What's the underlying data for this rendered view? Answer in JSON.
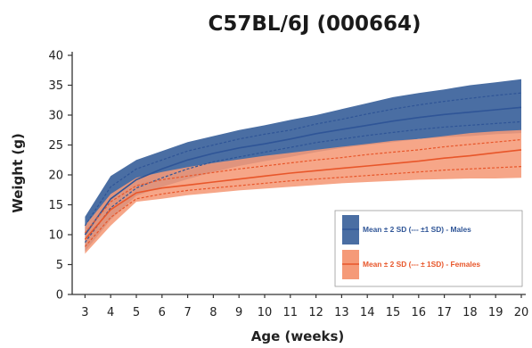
{
  "chart_data": {
    "type": "area",
    "title": "C57BL/6J (000664)",
    "xlabel": "Age (weeks)",
    "ylabel": "Weight (g)",
    "x": [
      3,
      4,
      5,
      6,
      7,
      8,
      9,
      10,
      11,
      12,
      13,
      14,
      15,
      16,
      17,
      18,
      19,
      20
    ],
    "xlim": [
      2.5,
      20
    ],
    "ylim": [
      0,
      40
    ],
    "yticks": [
      0,
      5,
      10,
      15,
      20,
      25,
      30,
      35,
      40
    ],
    "grid": "none",
    "legend_position": "bottom-right",
    "series": [
      {
        "name": "Mean ± 2 SD (--- ±1 SD) - Males",
        "color": "#2f5597",
        "band_color": "#4a6ea3",
        "mean": [
          10.0,
          16.0,
          19.2,
          21.0,
          22.5,
          23.6,
          24.5,
          25.2,
          26.0,
          26.9,
          27.6,
          28.3,
          29.0,
          29.6,
          30.1,
          30.5,
          30.9,
          31.3
        ],
        "upper2": [
          13.0,
          19.8,
          22.5,
          24.0,
          25.5,
          26.5,
          27.5,
          28.3,
          29.2,
          30.0,
          31.0,
          32.0,
          33.0,
          33.7,
          34.3,
          35.0,
          35.5,
          36.0
        ],
        "lower2": [
          7.2,
          12.5,
          16.5,
          18.0,
          19.3,
          20.5,
          21.5,
          22.3,
          23.0,
          23.8,
          24.5,
          25.0,
          25.5,
          26.0,
          26.3,
          26.5,
          26.8,
          27.0
        ],
        "upper1": [
          11.5,
          18.0,
          21.0,
          22.5,
          24.0,
          25.0,
          26.0,
          26.8,
          27.5,
          28.5,
          29.3,
          30.2,
          31.0,
          31.7,
          32.3,
          32.8,
          33.3,
          33.7
        ],
        "lower1": [
          8.7,
          14.5,
          17.8,
          19.5,
          21.0,
          22.2,
          23.0,
          23.8,
          24.6,
          25.4,
          26.0,
          26.6,
          27.1,
          27.6,
          28.0,
          28.3,
          28.6,
          28.9
        ]
      },
      {
        "name": "Mean ± 2 SD (--- ± 1SD) - Females",
        "color": "#e8562a",
        "band_color": "#f59a78",
        "mean": [
          9.2,
          14.2,
          17.0,
          17.8,
          18.3,
          18.8,
          19.3,
          19.8,
          20.3,
          20.7,
          21.1,
          21.5,
          21.9,
          22.3,
          22.8,
          23.2,
          23.7,
          24.2
        ],
        "upper2": [
          11.5,
          16.8,
          19.5,
          20.5,
          21.3,
          22.0,
          22.6,
          23.2,
          23.7,
          24.2,
          24.7,
          25.2,
          25.7,
          26.0,
          26.5,
          27.0,
          27.3,
          27.5
        ],
        "lower2": [
          6.8,
          11.5,
          15.5,
          16.0,
          16.6,
          17.0,
          17.4,
          17.7,
          18.0,
          18.3,
          18.6,
          18.8,
          19.0,
          19.2,
          19.3,
          19.4,
          19.4,
          19.5
        ],
        "upper1": [
          10.3,
          15.5,
          18.2,
          19.2,
          19.8,
          20.4,
          21.0,
          21.5,
          22.0,
          22.5,
          22.9,
          23.4,
          23.8,
          24.2,
          24.7,
          25.1,
          25.5,
          25.9
        ],
        "lower1": [
          8.0,
          12.9,
          16.0,
          16.8,
          17.4,
          17.8,
          18.2,
          18.6,
          19.0,
          19.3,
          19.6,
          19.9,
          20.2,
          20.5,
          20.8,
          21.0,
          21.2,
          21.4
        ]
      }
    ]
  }
}
